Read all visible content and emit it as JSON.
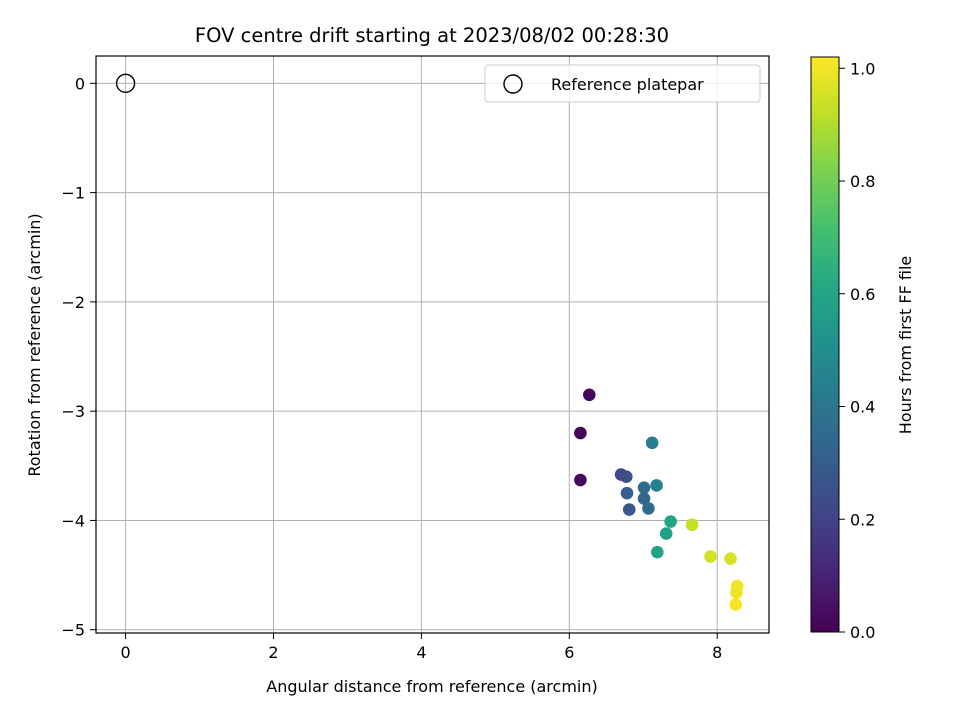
{
  "chart_data": {
    "type": "scatter",
    "title": "FOV centre drift starting at 2023/08/02 00:28:30",
    "xlabel": "Angular distance from reference (arcmin)",
    "ylabel": "Rotation from reference (arcmin)",
    "xlim": [
      -0.4,
      8.7
    ],
    "ylim": [
      -5.03,
      0.25
    ],
    "xticks": [
      0,
      2,
      4,
      6,
      8
    ],
    "xtick_labels": [
      "0",
      "2",
      "4",
      "6",
      "8"
    ],
    "yticks": [
      0,
      -1,
      -2,
      -3,
      -4,
      -5
    ],
    "ytick_labels": [
      "0",
      "−1",
      "−2",
      "−3",
      "−4",
      "−5"
    ],
    "grid": true,
    "legend": {
      "placement": "top-right",
      "entries": [
        "Reference platepar"
      ]
    },
    "reference": {
      "x": 0,
      "y": 0,
      "name": "Reference platepar"
    },
    "colorbar": {
      "label": "Hours from first FF file",
      "colormap": "viridis",
      "range": [
        0.0,
        1.02
      ],
      "ticks": [
        0.0,
        0.2,
        0.4,
        0.6,
        0.8,
        1.0
      ],
      "tick_labels": [
        "0.0",
        "0.2",
        "0.4",
        "0.6",
        "0.8",
        "1.0"
      ]
    },
    "points": [
      {
        "x": 6.27,
        "y": -2.85,
        "t": 0.02
      },
      {
        "x": 6.15,
        "y": -3.2,
        "t": 0.01
      },
      {
        "x": 6.15,
        "y": -3.63,
        "t": 0.02
      },
      {
        "x": 6.7,
        "y": -3.58,
        "t": 0.22
      },
      {
        "x": 6.77,
        "y": -3.6,
        "t": 0.24
      },
      {
        "x": 6.78,
        "y": -3.75,
        "t": 0.3
      },
      {
        "x": 6.81,
        "y": -3.9,
        "t": 0.28
      },
      {
        "x": 7.01,
        "y": -3.7,
        "t": 0.36
      },
      {
        "x": 7.01,
        "y": -3.8,
        "t": 0.34
      },
      {
        "x": 7.07,
        "y": -3.89,
        "t": 0.36
      },
      {
        "x": 7.12,
        "y": -3.29,
        "t": 0.42
      },
      {
        "x": 7.18,
        "y": -3.68,
        "t": 0.44
      },
      {
        "x": 7.37,
        "y": -4.01,
        "t": 0.6
      },
      {
        "x": 7.31,
        "y": -4.12,
        "t": 0.58
      },
      {
        "x": 7.19,
        "y": -4.29,
        "t": 0.58
      },
      {
        "x": 7.66,
        "y": -4.04,
        "t": 0.93
      },
      {
        "x": 7.91,
        "y": -4.33,
        "t": 0.95
      },
      {
        "x": 8.18,
        "y": -4.35,
        "t": 0.96
      },
      {
        "x": 8.27,
        "y": -4.6,
        "t": 1.0
      },
      {
        "x": 8.26,
        "y": -4.66,
        "t": 1.0
      },
      {
        "x": 8.25,
        "y": -4.77,
        "t": 1.01
      }
    ]
  }
}
